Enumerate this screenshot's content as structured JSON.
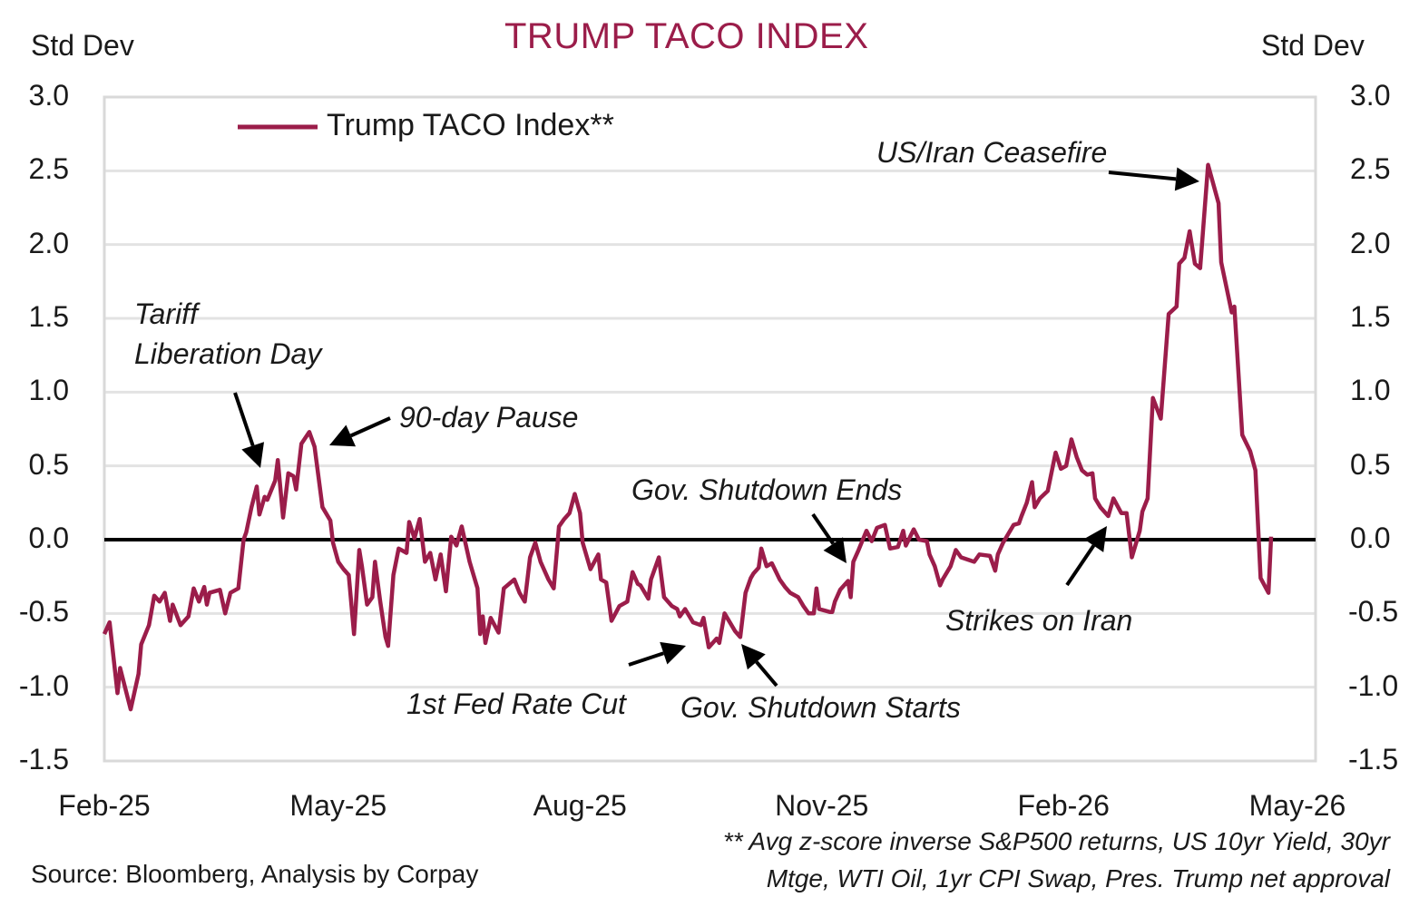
{
  "chart_data": {
    "type": "line",
    "title": "TRUMP TACO INDEX",
    "ylabel_left": "Std Dev",
    "ylabel_right": "Std Dev",
    "ylim": [
      -1.5,
      3.0
    ],
    "yticks": [
      "3.0",
      "2.5",
      "2.0",
      "1.5",
      "1.0",
      "0.5",
      "0.0",
      "-0.5",
      "-1.0",
      "-1.5"
    ],
    "ytick_values": [
      3.0,
      2.5,
      2.0,
      1.5,
      1.0,
      0.5,
      0.0,
      -0.5,
      -1.0,
      -1.5
    ],
    "x_unit": "days since 2025-02-01",
    "xlim": [
      0,
      454
    ],
    "xticks": [
      {
        "label": "Feb-25",
        "day": 0
      },
      {
        "label": "May-25",
        "day": 89
      },
      {
        "label": "Aug-25",
        "day": 181
      },
      {
        "label": "Nov-25",
        "day": 273
      },
      {
        "label": "Feb-26",
        "day": 365
      },
      {
        "label": "May-26",
        "day": 454
      }
    ],
    "grid": true,
    "zero_line": true,
    "legend": {
      "position": "top-left",
      "entries": [
        "Trump TACO Index**"
      ]
    },
    "series": [
      {
        "name": "Trump TACO Index**",
        "color": "#9b1d4a",
        "points": [
          [
            0,
            -0.64
          ],
          [
            2,
            -0.56
          ],
          [
            5,
            -1.04
          ],
          [
            6,
            -0.87
          ],
          [
            10,
            -1.15
          ],
          [
            13,
            -0.91
          ],
          [
            14,
            -0.71
          ],
          [
            17,
            -0.58
          ],
          [
            19,
            -0.38
          ],
          [
            21,
            -0.42
          ],
          [
            23,
            -0.36
          ],
          [
            25,
            -0.55
          ],
          [
            26,
            -0.44
          ],
          [
            29,
            -0.58
          ],
          [
            32,
            -0.52
          ],
          [
            34,
            -0.33
          ],
          [
            36,
            -0.42
          ],
          [
            38,
            -0.32
          ],
          [
            39,
            -0.44
          ],
          [
            40,
            -0.36
          ],
          [
            44,
            -0.34
          ],
          [
            46,
            -0.5
          ],
          [
            48,
            -0.36
          ],
          [
            51,
            -0.33
          ],
          [
            53,
            0.0
          ],
          [
            54,
            0.05
          ],
          [
            56,
            0.22
          ],
          [
            58,
            0.36
          ],
          [
            59,
            0.17
          ],
          [
            61,
            0.29
          ],
          [
            62,
            0.27
          ],
          [
            65,
            0.4
          ],
          [
            66,
            0.54
          ],
          [
            68,
            0.15
          ],
          [
            70,
            0.45
          ],
          [
            72,
            0.43
          ],
          [
            73,
            0.34
          ],
          [
            75,
            0.65
          ],
          [
            78,
            0.73
          ],
          [
            80,
            0.63
          ],
          [
            83,
            0.22
          ],
          [
            86,
            0.13
          ],
          [
            87,
            -0.02
          ],
          [
            89,
            -0.15
          ],
          [
            91,
            -0.2
          ],
          [
            93,
            -0.24
          ],
          [
            95,
            -0.64
          ],
          [
            97,
            -0.07
          ],
          [
            98,
            -0.18
          ],
          [
            100,
            -0.44
          ],
          [
            102,
            -0.39
          ],
          [
            103,
            -0.15
          ],
          [
            105,
            -0.42
          ],
          [
            107,
            -0.66
          ],
          [
            108,
            -0.72
          ],
          [
            110,
            -0.24
          ],
          [
            112,
            -0.06
          ],
          [
            113,
            -0.07
          ],
          [
            115,
            -0.09
          ],
          [
            116,
            0.12
          ],
          [
            118,
            0.01
          ],
          [
            120,
            0.14
          ],
          [
            122,
            -0.15
          ],
          [
            124,
            -0.09
          ],
          [
            126,
            -0.27
          ],
          [
            128,
            -0.1
          ],
          [
            130,
            -0.35
          ],
          [
            132,
            0.02
          ],
          [
            134,
            -0.04
          ],
          [
            136,
            0.09
          ],
          [
            139,
            -0.15
          ],
          [
            142,
            -0.33
          ],
          [
            143,
            -0.64
          ],
          [
            144,
            -0.52
          ],
          [
            145,
            -0.7
          ],
          [
            147,
            -0.53
          ],
          [
            150,
            -0.63
          ],
          [
            152,
            -0.33
          ],
          [
            156,
            -0.27
          ],
          [
            158,
            -0.36
          ],
          [
            160,
            -0.42
          ],
          [
            162,
            -0.12
          ],
          [
            164,
            -0.02
          ],
          [
            166,
            -0.15
          ],
          [
            169,
            -0.27
          ],
          [
            171,
            -0.33
          ],
          [
            173,
            0.09
          ],
          [
            175,
            0.14
          ],
          [
            177,
            0.18
          ],
          [
            179,
            0.31
          ],
          [
            181,
            0.18
          ],
          [
            182,
            -0.02
          ],
          [
            185,
            -0.2
          ],
          [
            188,
            -0.1
          ],
          [
            189,
            -0.27
          ],
          [
            191,
            -0.29
          ],
          [
            193,
            -0.55
          ],
          [
            196,
            -0.45
          ],
          [
            199,
            -0.42
          ],
          [
            201,
            -0.22
          ],
          [
            203,
            -0.3
          ],
          [
            204,
            -0.31
          ],
          [
            207,
            -0.4
          ],
          [
            208,
            -0.27
          ],
          [
            211,
            -0.12
          ],
          [
            213,
            -0.39
          ],
          [
            216,
            -0.45
          ],
          [
            218,
            -0.47
          ],
          [
            219,
            -0.52
          ],
          [
            221,
            -0.47
          ],
          [
            224,
            -0.56
          ],
          [
            227,
            -0.58
          ],
          [
            228,
            -0.53
          ],
          [
            230,
            -0.73
          ],
          [
            233,
            -0.67
          ],
          [
            234,
            -0.7
          ],
          [
            236,
            -0.5
          ],
          [
            240,
            -0.62
          ],
          [
            242,
            -0.66
          ],
          [
            244,
            -0.36
          ],
          [
            246,
            -0.26
          ],
          [
            247,
            -0.23
          ],
          [
            249,
            -0.19
          ],
          [
            250,
            -0.06
          ],
          [
            252,
            -0.18
          ],
          [
            254,
            -0.16
          ],
          [
            257,
            -0.27
          ],
          [
            259,
            -0.32
          ],
          [
            261,
            -0.36
          ],
          [
            264,
            -0.39
          ],
          [
            266,
            -0.45
          ],
          [
            268,
            -0.5
          ],
          [
            270,
            -0.5
          ],
          [
            271,
            -0.33
          ],
          [
            272,
            -0.47
          ],
          [
            274,
            -0.48
          ],
          [
            276,
            -0.49
          ],
          [
            277,
            -0.49
          ],
          [
            278,
            -0.42
          ],
          [
            280,
            -0.34
          ],
          [
            283,
            -0.28
          ],
          [
            284,
            -0.39
          ],
          [
            285,
            -0.15
          ],
          [
            287,
            -0.07
          ],
          [
            290,
            0.06
          ],
          [
            292,
            -0.01
          ],
          [
            294,
            0.08
          ],
          [
            297,
            0.1
          ],
          [
            299,
            -0.06
          ],
          [
            302,
            -0.05
          ],
          [
            304,
            0.06
          ],
          [
            305,
            -0.04
          ],
          [
            308,
            0.07
          ],
          [
            310,
            0.0
          ],
          [
            313,
            -0.01
          ],
          [
            314,
            -0.1
          ],
          [
            316,
            -0.18
          ],
          [
            318,
            -0.31
          ],
          [
            319,
            -0.27
          ],
          [
            322,
            -0.18
          ],
          [
            324,
            -0.07
          ],
          [
            326,
            -0.12
          ],
          [
            331,
            -0.15
          ],
          [
            333,
            -0.1
          ],
          [
            337,
            -0.11
          ],
          [
            339,
            -0.21
          ],
          [
            340,
            -0.1
          ],
          [
            342,
            -0.02
          ],
          [
            344,
            0.04
          ],
          [
            346,
            0.1
          ],
          [
            348,
            0.11
          ],
          [
            349,
            0.16
          ],
          [
            351,
            0.25
          ],
          [
            353,
            0.39
          ],
          [
            354,
            0.22
          ],
          [
            356,
            0.28
          ],
          [
            359,
            0.33
          ],
          [
            362,
            0.59
          ],
          [
            364,
            0.48
          ],
          [
            366,
            0.5
          ],
          [
            368,
            0.68
          ],
          [
            370,
            0.56
          ],
          [
            372,
            0.47
          ],
          [
            374,
            0.44
          ],
          [
            376,
            0.45
          ],
          [
            377,
            0.28
          ],
          [
            379,
            0.22
          ],
          [
            382,
            0.16
          ],
          [
            384,
            0.28
          ],
          [
            387,
            0.18
          ],
          [
            389,
            0.18
          ],
          [
            391,
            -0.12
          ],
          [
            394,
            0.06
          ],
          [
            395,
            0.19
          ],
          [
            397,
            0.28
          ],
          [
            399,
            0.96
          ],
          [
            402,
            0.82
          ],
          [
            405,
            1.53
          ],
          [
            408,
            1.58
          ],
          [
            409,
            1.87
          ],
          [
            411,
            1.91
          ],
          [
            413,
            2.09
          ],
          [
            415,
            1.87
          ],
          [
            417,
            1.84
          ],
          [
            420,
            2.54
          ],
          [
            424,
            2.28
          ],
          [
            425,
            1.88
          ],
          [
            427,
            1.71
          ],
          [
            429,
            1.54
          ],
          [
            430,
            1.58
          ],
          [
            433,
            0.71
          ],
          [
            436,
            0.6
          ],
          [
            438,
            0.47
          ],
          [
            440,
            -0.26
          ],
          [
            443,
            -0.36
          ],
          [
            444,
            0.02
          ]
        ]
      }
    ],
    "annotations": [
      {
        "text": "Tariff",
        "text2": "Liberation Day",
        "day": 61,
        "value": 0.45
      },
      {
        "text": "90-day Pause",
        "day": 79,
        "value": 0.65
      },
      {
        "text": "1st Fed Rate Cut",
        "day": 224,
        "value": -0.7
      },
      {
        "text": "Gov. Shutdown Starts",
        "day": 242,
        "value": -0.7
      },
      {
        "text": "Gov. Shutdown Ends",
        "day": 283,
        "value": -0.15
      },
      {
        "text": "Strikes on Iran",
        "day": 381,
        "value": 0.1
      },
      {
        "text": "US/Iran Ceasefire",
        "day": 418,
        "value": 2.45
      }
    ]
  },
  "footer": {
    "source": "Source: Bloomberg, Analysis by Corpay",
    "note_line1": "** Avg z-score inverse S&P500 returns, US 10yr Yield, 30yr",
    "note_line2": "Mtge, WTI Oil, 1yr CPI Swap, Pres. Trump net approval"
  }
}
